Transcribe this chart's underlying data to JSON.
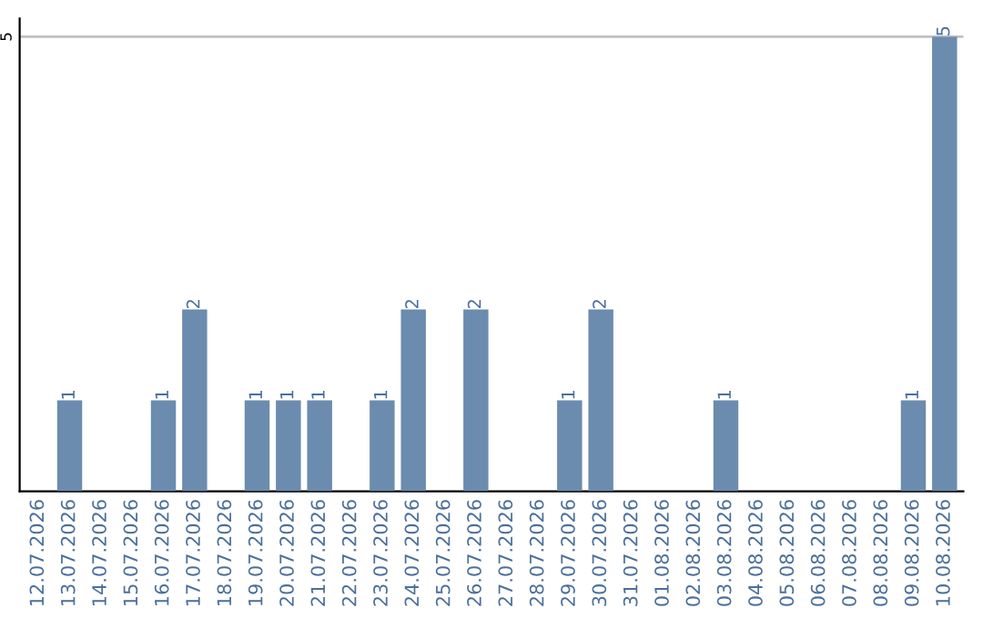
{
  "chart_data": {
    "type": "bar",
    "categories": [
      "12.07.2026",
      "13.07.2026",
      "14.07.2026",
      "15.07.2026",
      "16.07.2026",
      "17.07.2026",
      "18.07.2026",
      "19.07.2026",
      "20.07.2026",
      "21.07.2026",
      "22.07.2026",
      "23.07.2026",
      "24.07.2026",
      "25.07.2026",
      "26.07.2026",
      "27.07.2026",
      "28.07.2026",
      "29.07.2026",
      "30.07.2026",
      "31.07.2026",
      "01.08.2026",
      "02.08.2026",
      "03.08.2026",
      "04.08.2026",
      "05.08.2026",
      "06.08.2026",
      "07.08.2026",
      "08.08.2026",
      "09.08.2026",
      "10.08.2026"
    ],
    "values": [
      0,
      1,
      0,
      0,
      1,
      2,
      0,
      1,
      1,
      1,
      0,
      1,
      2,
      0,
      2,
      0,
      0,
      1,
      2,
      0,
      0,
      0,
      1,
      0,
      0,
      0,
      0,
      0,
      1,
      5
    ],
    "color": "#6b8cae",
    "value_labels": [
      null,
      "1",
      null,
      null,
      "1",
      "2",
      null,
      "1",
      "1",
      "1",
      null,
      "1",
      "2",
      null,
      "2",
      null,
      null,
      "1",
      "2",
      null,
      null,
      null,
      "1",
      null,
      null,
      null,
      null,
      null,
      "1",
      "5"
    ],
    "ylim": [
      0,
      5.2
    ],
    "yticks": [
      5
    ],
    "grid": "y"
  }
}
